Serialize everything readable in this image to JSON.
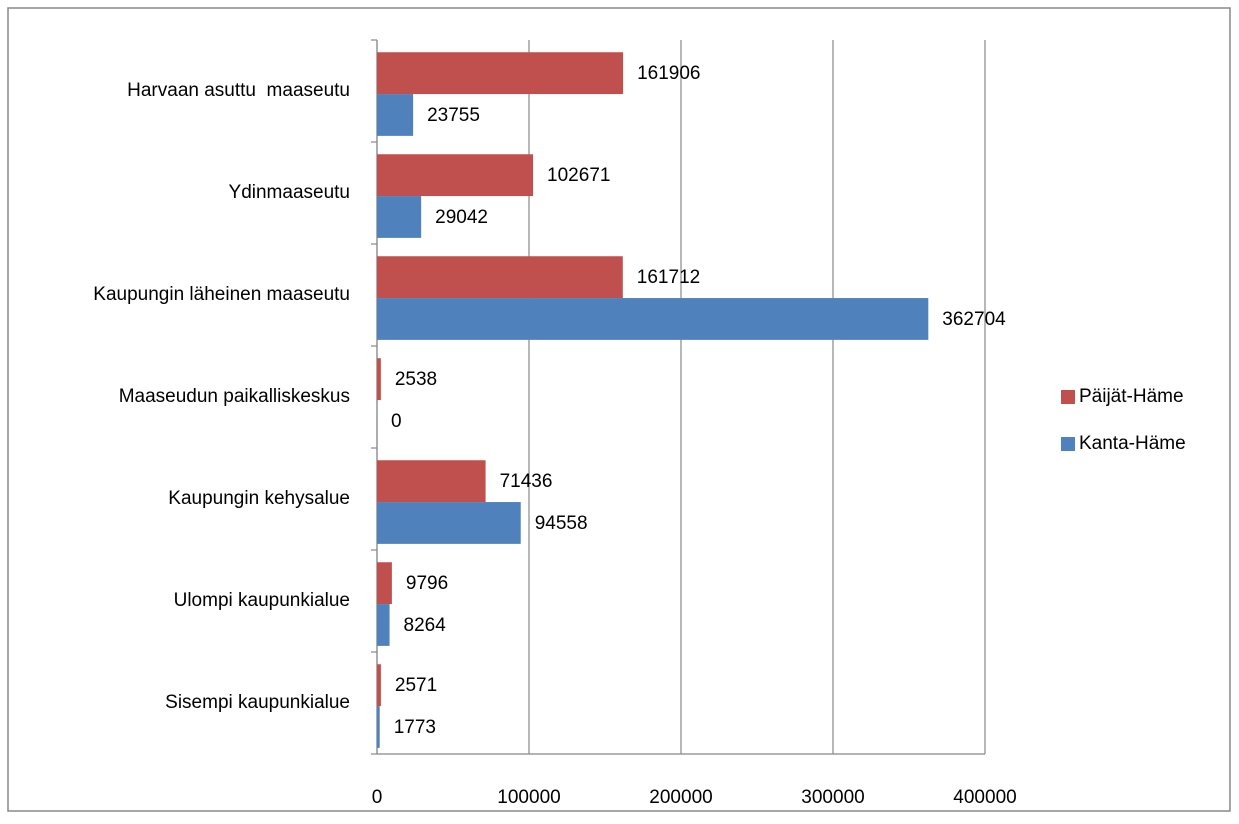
{
  "chart_data": {
    "type": "bar",
    "orientation": "horizontal",
    "categories": [
      "Harvaan asuttu  maaseutu",
      "Ydinmaaseutu",
      "Kaupungin läheinen maaseutu",
      "Maaseudun paikalliskeskus",
      "Kaupungin kehysalue",
      "Ulompi kaupunkialue",
      "Sisempi kaupunkialue"
    ],
    "series": [
      {
        "name": "Päijät-Häme",
        "color": "#c0504d",
        "values": [
          161906,
          102671,
          161712,
          2538,
          71436,
          9796,
          2571
        ]
      },
      {
        "name": "Kanta-Häme",
        "color": "#4f81bd",
        "values": [
          23755,
          29042,
          362704,
          0,
          94558,
          8264,
          1773
        ]
      }
    ],
    "xlim": [
      0,
      400000
    ],
    "xticks": [
      0,
      100000,
      200000,
      300000,
      400000
    ],
    "grid": true,
    "legend": "right"
  }
}
